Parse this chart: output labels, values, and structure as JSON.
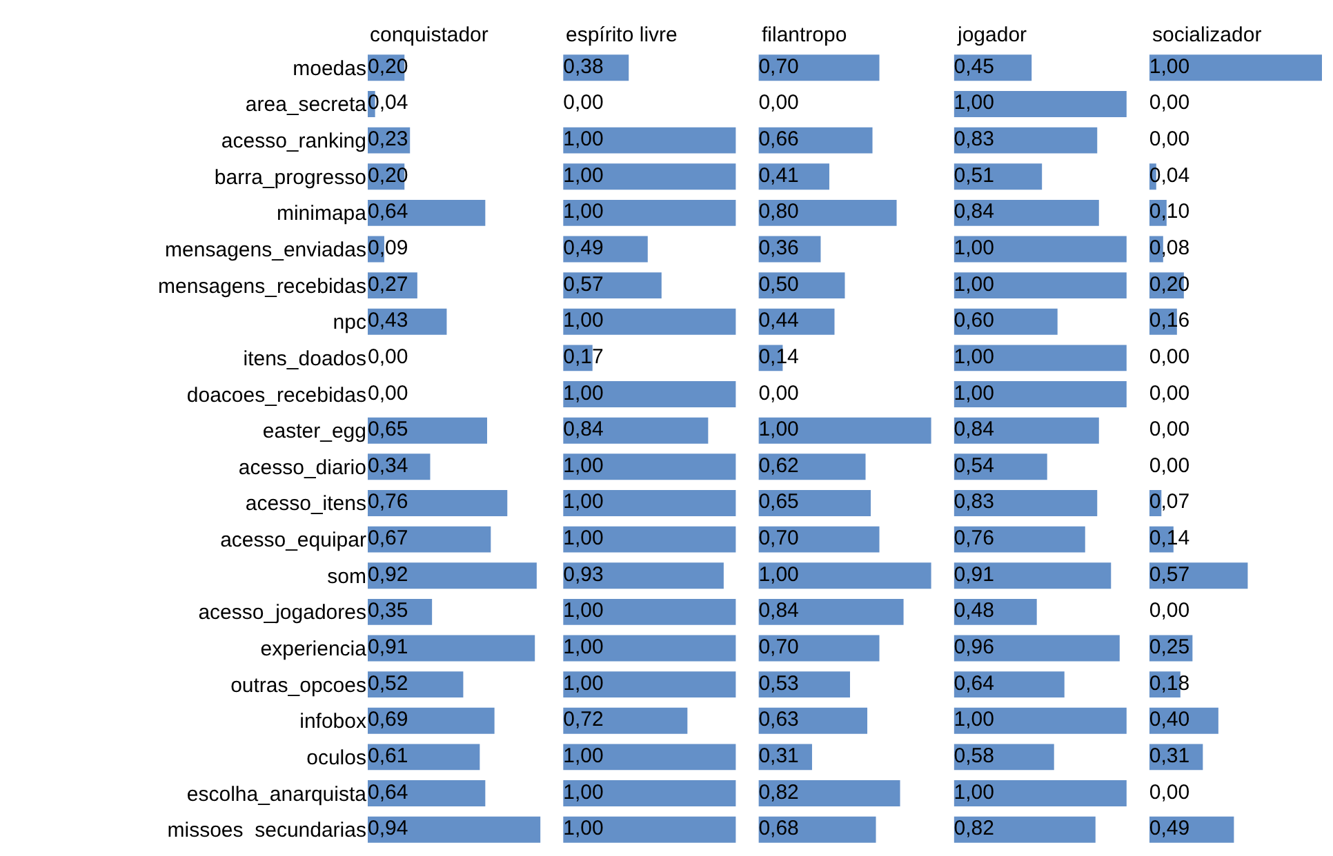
{
  "chart_data": [
    {
      "type": "bar",
      "orientation": "horizontal",
      "title": "conquistador",
      "tick_labels": "y",
      "color": "#6490c8",
      "categories": [
        "moedas",
        "area_secreta",
        "acesso_ranking",
        "barra_progresso",
        "minimapa",
        "mensagens_enviadas",
        "mensagens_recebidas",
        "npc",
        "itens_doados",
        "doacoes_recebidas",
        "easter_egg",
        "acesso_diario",
        "acesso_itens",
        "acesso_equipar",
        "som",
        "acesso_jogadores",
        "experiencia",
        "outras_opcoes",
        "infobox",
        "oculos",
        "escolha_anarquista",
        "missoes  secundarias"
      ],
      "values": [
        0.2,
        0.04,
        0.23,
        0.2,
        0.64,
        0.09,
        0.27,
        0.43,
        0.0,
        0.0,
        0.65,
        0.34,
        0.76,
        0.67,
        0.92,
        0.35,
        0.91,
        0.52,
        0.69,
        0.61,
        0.64,
        0.94
      ],
      "value_labels": [
        "0,20",
        "0,04",
        "0,23",
        "0,20",
        "0,64",
        "0,09",
        "0,27",
        "0,43",
        "0,00",
        "0,00",
        "0,65",
        "0,34",
        "0,76",
        "0,67",
        "0,92",
        "0,35",
        "0,91",
        "0,52",
        "0,69",
        "0,61",
        "0,64",
        "0,94"
      ]
    },
    {
      "type": "bar",
      "orientation": "horizontal",
      "title": "espírito livre",
      "tick_labels": false,
      "color": "#6490c8",
      "categories": [
        null,
        null,
        null,
        null,
        null,
        null,
        null,
        null,
        null,
        null,
        null,
        null,
        null,
        null,
        null,
        null,
        null,
        null,
        null,
        null,
        null,
        null
      ],
      "values": [
        0.38,
        0.0,
        1.0,
        1.0,
        1.0,
        0.49,
        0.57,
        1.0,
        0.17,
        1.0,
        0.84,
        1.0,
        1.0,
        1.0,
        0.93,
        1.0,
        1.0,
        1.0,
        0.72,
        1.0,
        1.0,
        1.0
      ],
      "value_labels": [
        "0,38",
        "0,00",
        "1,00",
        "1,00",
        "1,00",
        "0,49",
        "0,57",
        "1,00",
        "0,17",
        "1,00",
        "0,84",
        "1,00",
        "1,00",
        "1,00",
        "0,93",
        "1,00",
        "1,00",
        "1,00",
        "0,72",
        "1,00",
        "1,00",
        "1,00"
      ]
    },
    {
      "type": "bar",
      "orientation": "horizontal",
      "title": "filantropo",
      "tick_labels": false,
      "color": "#6490c8",
      "categories": [
        null,
        null,
        null,
        null,
        null,
        null,
        null,
        null,
        null,
        null,
        null,
        null,
        null,
        null,
        null,
        null,
        null,
        null,
        null,
        null,
        null,
        null
      ],
      "values": [
        0.7,
        0.0,
        0.66,
        0.41,
        0.8,
        0.36,
        0.5,
        0.44,
        0.14,
        0.0,
        1.0,
        0.62,
        0.65,
        0.7,
        1.0,
        0.84,
        0.7,
        0.53,
        0.63,
        0.31,
        0.82,
        0.68
      ],
      "value_labels": [
        "0,70",
        "0,00",
        "0,66",
        "0,41",
        "0,80",
        "0,36",
        "0,50",
        "0,44",
        "0,14",
        "0,00",
        "1,00",
        "0,62",
        "0,65",
        "0,70",
        "1,00",
        "0,84",
        "0,70",
        "0,53",
        "0,63",
        "0,31",
        "0,82",
        "0,68"
      ]
    },
    {
      "type": "bar",
      "orientation": "horizontal",
      "title": "jogador",
      "tick_labels": false,
      "color": "#6490c8",
      "categories": [
        null,
        null,
        null,
        null,
        null,
        null,
        null,
        null,
        null,
        null,
        null,
        null,
        null,
        null,
        null,
        null,
        null,
        null,
        null,
        null,
        null,
        null
      ],
      "values": [
        0.45,
        1.0,
        0.83,
        0.51,
        0.84,
        1.0,
        1.0,
        0.6,
        1.0,
        1.0,
        0.84,
        0.54,
        0.83,
        0.76,
        0.91,
        0.48,
        0.96,
        0.64,
        1.0,
        0.58,
        1.0,
        0.82
      ],
      "value_labels": [
        "0,45",
        "1,00",
        "0,83",
        "0,51",
        "0,84",
        "1,00",
        "1,00",
        "0,60",
        "1,00",
        "1,00",
        "0,84",
        "0,54",
        "0,83",
        "0,76",
        "0,91",
        "0,48",
        "0,96",
        "0,64",
        "1,00",
        "0,58",
        "1,00",
        "0,82"
      ]
    },
    {
      "type": "bar",
      "orientation": "horizontal",
      "title": "socializador",
      "tick_labels": false,
      "color": "#6490c8",
      "categories": [
        null,
        null,
        null,
        null,
        null,
        null,
        null,
        null,
        null,
        null,
        null,
        null,
        null,
        null,
        null,
        null,
        null,
        null,
        null,
        null,
        null,
        null
      ],
      "values": [
        1.0,
        0.0,
        0.0,
        0.04,
        0.1,
        0.08,
        0.2,
        0.16,
        0.0,
        0.0,
        0.0,
        0.0,
        0.07,
        0.14,
        0.57,
        0.0,
        0.25,
        0.18,
        0.4,
        0.31,
        0.0,
        0.49
      ],
      "value_labels": [
        "1,00",
        "0,00",
        "0,00",
        "0,04",
        "0,10",
        "0,08",
        "0,20",
        "0,16",
        "0,00",
        "0,00",
        "0,00",
        "0,00",
        "0,07",
        "0,14",
        "0,57",
        "0,00",
        "0,25",
        "0,18",
        "0,40",
        "0,31",
        "0,00",
        "0,49"
      ]
    }
  ]
}
